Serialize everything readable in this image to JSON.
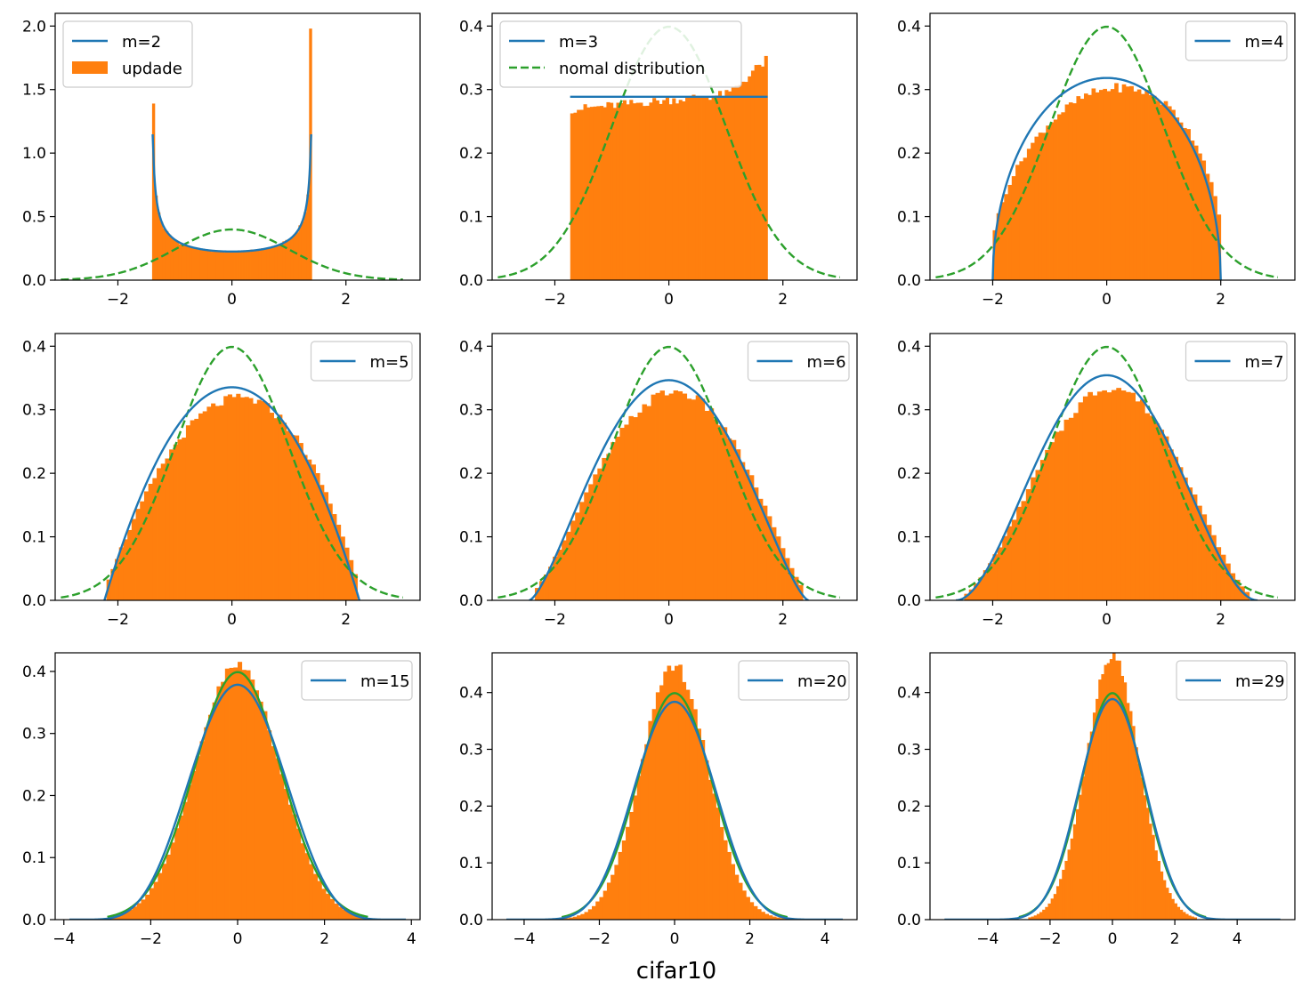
{
  "colors": {
    "fit": "#1f77b4",
    "hist": "#ff7f0e",
    "normal": "#2ca02c",
    "axis": "#000000",
    "legend_border": "#cccccc"
  },
  "figure": {
    "xlabel": "cifar10"
  },
  "chart_data": [
    {
      "type": "bar",
      "m": 2,
      "support": 1.414,
      "legend": [
        "m=2",
        "updade"
      ],
      "legend_loc": "upper left",
      "xlim": [
        -3.1,
        3.3
      ],
      "ylim": [
        0,
        2.1
      ],
      "xticks": [
        -2,
        0,
        2
      ],
      "yticks": [
        0.0,
        0.5,
        1.0,
        1.5,
        2.0
      ],
      "hist_edges": [
        -1.4,
        1.4
      ],
      "hist_bin_count": 60,
      "hist_peak_values": {
        "left_edge": 1.39,
        "right_edge": 1.98,
        "center": 0.23
      }
    },
    {
      "type": "bar",
      "m": 3,
      "support": 1.732,
      "legend": [
        "m=3",
        "nomal distribution"
      ],
      "legend_loc": "upper left",
      "xlim": [
        -3.1,
        3.3
      ],
      "ylim": [
        0,
        0.42
      ],
      "xticks": [
        -2,
        0,
        2
      ],
      "yticks": [
        0.0,
        0.1,
        0.2,
        0.3,
        0.4
      ],
      "hist_edges": [
        -1.73,
        1.73
      ],
      "hist_bin_count": 60,
      "hist_endpoints": {
        "left": 0.285,
        "right": 0.35
      }
    },
    {
      "type": "bar",
      "m": 4,
      "support": 2.0,
      "legend": [
        "m=4"
      ],
      "legend_loc": "upper right",
      "xlim": [
        -3.1,
        3.3
      ],
      "ylim": [
        0,
        0.42
      ],
      "xticks": [
        -2,
        0,
        2
      ],
      "yticks": [
        0.0,
        0.1,
        0.2,
        0.3,
        0.4
      ],
      "hist_edges": [
        -2.0,
        2.0
      ],
      "hist_bin_count": 60
    },
    {
      "type": "bar",
      "m": 5,
      "support": 2.236,
      "legend": [
        "m=5"
      ],
      "legend_loc": "upper right",
      "xlim": [
        -3.1,
        3.3
      ],
      "ylim": [
        0,
        0.42
      ],
      "xticks": [
        -2,
        0,
        2
      ],
      "yticks": [
        0.0,
        0.1,
        0.2,
        0.3,
        0.4
      ],
      "hist_edges": [
        -2.2,
        2.2
      ],
      "hist_bin_count": 60
    },
    {
      "type": "bar",
      "m": 6,
      "support": 2.449,
      "legend": [
        "m=6"
      ],
      "legend_loc": "upper right",
      "xlim": [
        -3.1,
        3.3
      ],
      "ylim": [
        0,
        0.42
      ],
      "xticks": [
        -2,
        0,
        2
      ],
      "yticks": [
        0.0,
        0.1,
        0.2,
        0.3,
        0.4
      ],
      "hist_edges": [
        -2.35,
        2.35
      ],
      "hist_bin_count": 60
    },
    {
      "type": "bar",
      "m": 7,
      "support": 2.646,
      "legend": [
        "m=7"
      ],
      "legend_loc": "upper right",
      "xlim": [
        -3.1,
        3.3
      ],
      "ylim": [
        0,
        0.42
      ],
      "xticks": [
        -2,
        0,
        2
      ],
      "yticks": [
        0.0,
        0.1,
        0.2,
        0.3,
        0.4
      ],
      "hist_edges": [
        -2.5,
        2.5
      ],
      "hist_bin_count": 60
    },
    {
      "type": "bar",
      "m": 15,
      "support": 3.873,
      "legend": [
        "m=15"
      ],
      "legend_loc": "upper right",
      "xlim": [
        -4.2,
        4.2
      ],
      "ylim": [
        0,
        0.43
      ],
      "xticks": [
        -4,
        -2,
        0,
        2,
        4
      ],
      "yticks": [
        0.0,
        0.1,
        0.2,
        0.3,
        0.4
      ],
      "hist_edges": [
        -2.9,
        2.9
      ],
      "hist_bin_count": 60,
      "hist_peak": 0.41
    },
    {
      "type": "bar",
      "m": 20,
      "support": 4.472,
      "legend": [
        "m=20"
      ],
      "legend_loc": "upper right",
      "xlim": [
        -4.85,
        4.85
      ],
      "ylim": [
        0,
        0.47
      ],
      "xticks": [
        -4,
        -2,
        0,
        2,
        4
      ],
      "yticks": [
        0.0,
        0.1,
        0.2,
        0.3,
        0.4
      ],
      "hist_edges": [
        -3.0,
        3.0
      ],
      "hist_bin_count": 60,
      "hist_peak": 0.447
    },
    {
      "type": "bar",
      "m": 29,
      "support": 5.385,
      "legend": [
        "m=29"
      ],
      "legend_loc": "upper right",
      "xlim": [
        -5.85,
        5.85
      ],
      "ylim": [
        0,
        0.47
      ],
      "xticks": [
        -4,
        -2,
        0,
        2,
        4
      ],
      "yticks": [
        0.0,
        0.1,
        0.2,
        0.3,
        0.4
      ],
      "hist_edges": [
        -2.7,
        2.7
      ],
      "hist_bin_count": 60,
      "hist_peak": 0.465
    }
  ]
}
